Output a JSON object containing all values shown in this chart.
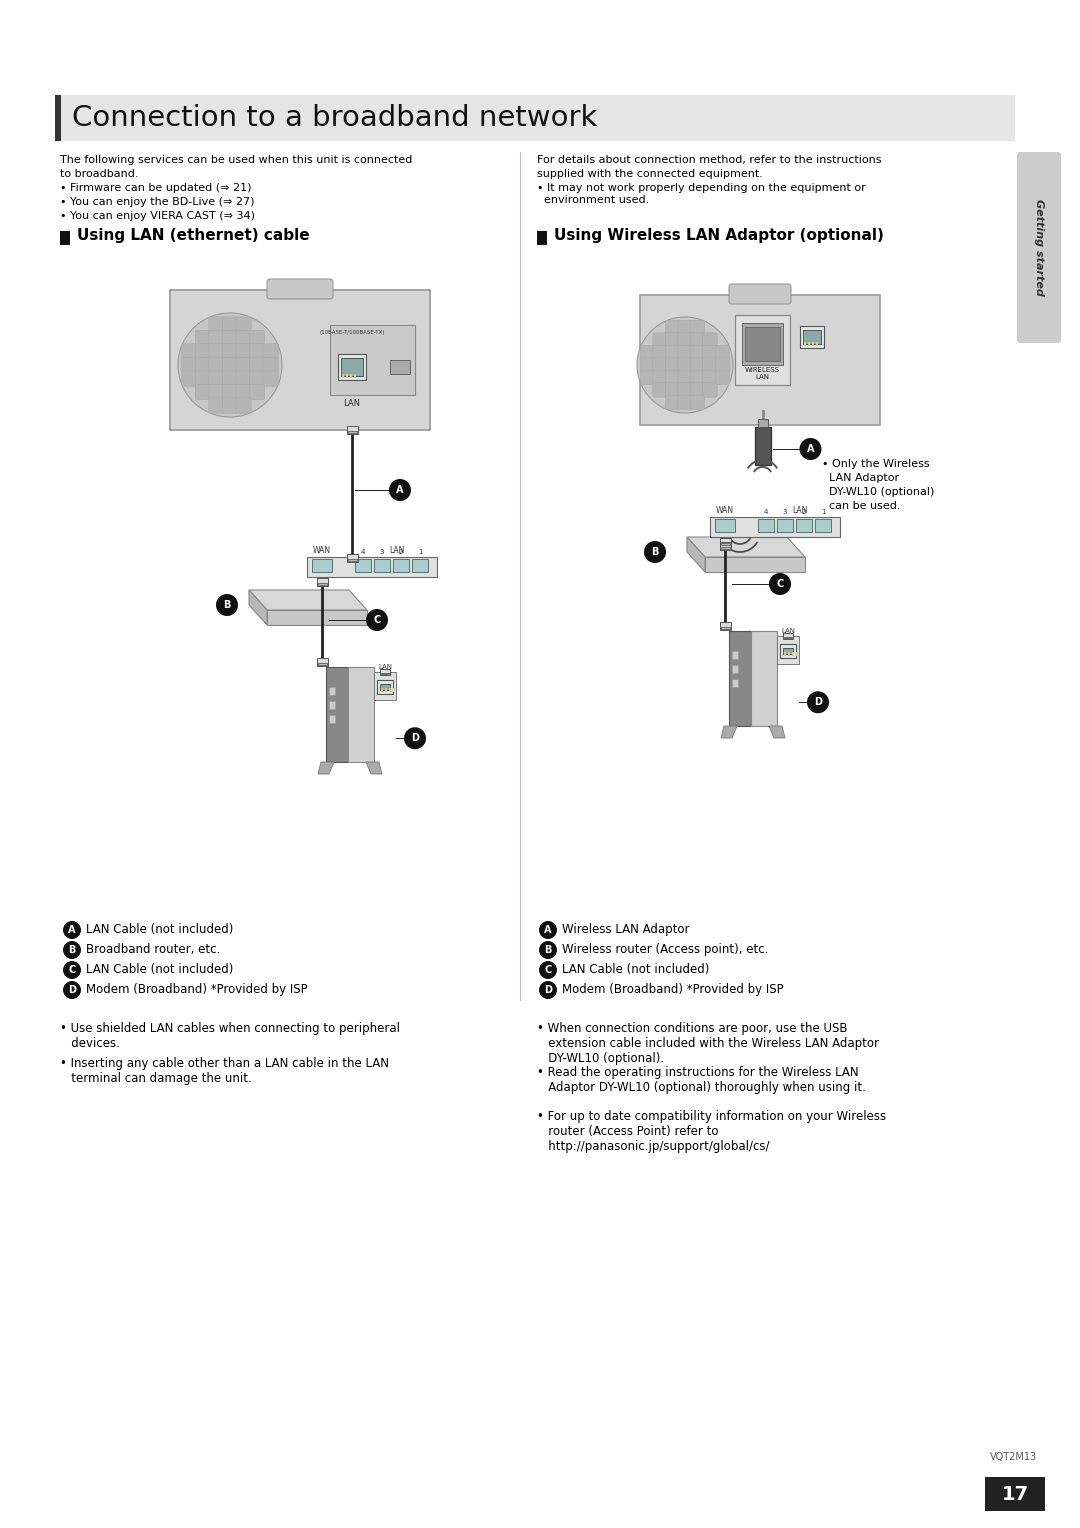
{
  "title": "Connection to a broadband network",
  "title_bar_color": "#e8e8e8",
  "title_bar_left_color": "#1a1a1a",
  "background_color": "#ffffff",
  "page_number": "17",
  "side_tab_text": "Getting started",
  "intro_left_line1": "The following services can be used when this unit is connected",
  "intro_left_line2": "to broadband.",
  "intro_left_bullets": [
    "Firmware can be updated (⇒ 21)",
    "You can enjoy the BD-Live (⇒ 27)",
    "You can enjoy VIERA CAST (⇒ 34)"
  ],
  "intro_right_line1": "For details about connection method, refer to the instructions",
  "intro_right_line2": "supplied with the connected equipment.",
  "intro_right_bullets": [
    "It may not work properly depending on the equipment or\n  environment used."
  ],
  "section_left_title": "Using LAN (ethernet) cable",
  "section_right_title": "Using Wireless LAN Adaptor (optional)",
  "wireless_note_lines": [
    "• Only the Wireless",
    "  LAN Adaptor",
    "  DY-WL10 (optional)",
    "  can be used."
  ],
  "left_legend": [
    [
      "A",
      "LAN Cable (not included)"
    ],
    [
      "B",
      "Broadband router, etc."
    ],
    [
      "C",
      "LAN Cable (not included)"
    ],
    [
      "D",
      "Modem (Broadband) *Provided by ISP"
    ]
  ],
  "left_notes": [
    "• Use shielded LAN cables when connecting to peripheral\n   devices.",
    "• Inserting any cable other than a LAN cable in the LAN\n   terminal can damage the unit."
  ],
  "right_legend": [
    [
      "A",
      "Wireless LAN Adaptor"
    ],
    [
      "B",
      "Wireless router (Access point), etc."
    ],
    [
      "C",
      "LAN Cable (not included)"
    ],
    [
      "D",
      "Modem (Broadband) *Provided by ISP"
    ]
  ],
  "right_notes": [
    "• When connection conditions are poor, use the USB\n   extension cable included with the Wireless LAN Adaptor\n   DY-WL10 (optional).",
    "• Read the operating instructions for the Wireless LAN\n   Adaptor DY-WL10 (optional) thoroughly when using it.",
    "• For up to date compatibility information on your Wireless\n   router (Access Point) refer to\n   http://panasonic.jp/support/global/cs/"
  ]
}
